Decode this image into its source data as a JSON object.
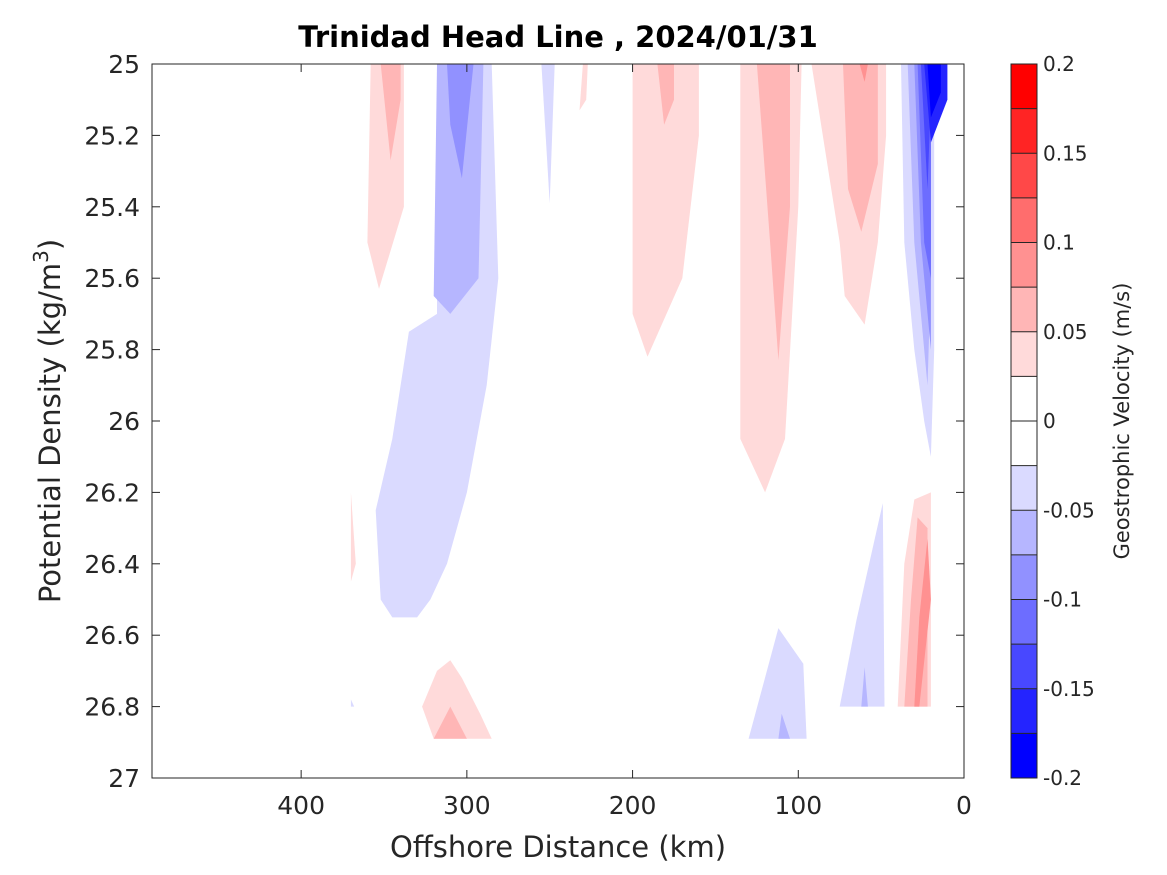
{
  "chart_data": {
    "type": "contour",
    "title": "Trinidad Head Line , 2024/01/31",
    "xlabel": "Offshore Distance (km)",
    "ylabel_main": "Potential Density (kg/m",
    "ylabel_sup": "3",
    "ylabel_close": ")",
    "xlim": [
      490,
      0
    ],
    "ylim": [
      25,
      27
    ],
    "y_reversed": true,
    "x_ticks": [
      "400",
      "300",
      "200",
      "100",
      "0"
    ],
    "x_tick_values": [
      400,
      300,
      200,
      100,
      0
    ],
    "y_ticks": [
      "25",
      "25.2",
      "25.4",
      "25.6",
      "25.8",
      "26",
      "26.2",
      "26.4",
      "26.6",
      "26.8",
      "27"
    ],
    "y_tick_values": [
      25,
      25.2,
      25.4,
      25.6,
      25.8,
      26,
      26.2,
      26.4,
      26.6,
      26.8,
      27
    ],
    "colorbar": {
      "label": "Geostrophic Velocity (m/s)",
      "clim": [
        -0.2,
        0.2
      ],
      "tick_labels": [
        "0.2",
        "0.15",
        "0.1",
        "0.05",
        "0",
        "-0.05",
        "-0.1",
        "-0.15",
        "-0.2"
      ],
      "tick_values": [
        0.2,
        0.15,
        0.1,
        0.05,
        0,
        -0.05,
        -0.1,
        -0.15,
        -0.2
      ],
      "level_colors": [
        "#0000ff",
        "#2424ff",
        "#4848ff",
        "#6d6dff",
        "#9191ff",
        "#b6b6ff",
        "#dadaff",
        "#ffffff",
        "#ffffff",
        "#ffdada",
        "#ffb6b6",
        "#ff9191",
        "#ff6d6d",
        "#ff4848",
        "#ff2424",
        "#ff0000"
      ]
    },
    "regions": [
      {
        "level": -0.04,
        "color": "#dadaff",
        "points": [
          [
            285,
            25
          ],
          [
            281,
            25.6
          ],
          [
            288,
            25.9
          ],
          [
            300,
            26.2
          ],
          [
            312,
            26.4
          ],
          [
            322,
            26.5
          ],
          [
            330,
            26.55
          ],
          [
            345,
            26.55
          ],
          [
            352,
            26.5
          ],
          [
            355,
            26.25
          ],
          [
            345,
            26.05
          ],
          [
            335,
            25.75
          ],
          [
            318,
            25.7
          ],
          [
            318,
            25
          ],
          [
            285,
            25
          ]
        ]
      },
      {
        "level": -0.06,
        "color": "#b6b6ff",
        "points": [
          [
            290,
            25
          ],
          [
            293,
            25.6
          ],
          [
            310,
            25.7
          ],
          [
            320,
            25.65
          ],
          [
            318,
            25
          ],
          [
            290,
            25
          ]
        ]
      },
      {
        "level": -0.08,
        "color": "#9191ff",
        "points": [
          [
            296,
            25
          ],
          [
            303,
            25.32
          ],
          [
            310,
            25.17
          ],
          [
            312,
            25
          ],
          [
            296,
            25
          ]
        ]
      },
      {
        "level": -0.04,
        "color": "#dadaff",
        "points": [
          [
            255,
            25
          ],
          [
            250,
            25.39
          ],
          [
            247,
            25
          ],
          [
            255,
            25
          ]
        ]
      },
      {
        "level": 0.04,
        "color": "#ffdada",
        "points": [
          [
            358,
            25
          ],
          [
            360,
            25.5
          ],
          [
            353,
            25.63
          ],
          [
            338,
            25.4
          ],
          [
            338,
            25
          ],
          [
            358,
            25
          ]
        ]
      },
      {
        "level": 0.06,
        "color": "#ffb6b6",
        "points": [
          [
            352,
            25
          ],
          [
            346,
            25.27
          ],
          [
            340,
            25.1
          ],
          [
            340,
            25
          ],
          [
            352,
            25
          ]
        ]
      },
      {
        "level": 0.04,
        "color": "#ffdada",
        "points": [
          [
            230,
            25
          ],
          [
            232,
            25.13
          ],
          [
            228,
            25.1
          ],
          [
            227,
            25
          ],
          [
            230,
            25
          ]
        ]
      },
      {
        "level": 0.04,
        "color": "#ffdada",
        "points": [
          [
            200,
            25
          ],
          [
            200,
            25.7
          ],
          [
            191,
            25.82
          ],
          [
            170,
            25.6
          ],
          [
            160,
            25.2
          ],
          [
            160,
            25
          ],
          [
            200,
            25
          ]
        ]
      },
      {
        "level": 0.06,
        "color": "#ffb6b6",
        "points": [
          [
            185,
            25
          ],
          [
            181,
            25.17
          ],
          [
            175,
            25.1
          ],
          [
            175,
            25
          ],
          [
            185,
            25
          ]
        ]
      },
      {
        "level": 0.04,
        "color": "#ffdada",
        "points": [
          [
            135,
            25
          ],
          [
            135,
            26.05
          ],
          [
            120,
            26.2
          ],
          [
            108,
            26.05
          ],
          [
            100,
            25.4
          ],
          [
            98,
            25
          ],
          [
            135,
            25
          ]
        ]
      },
      {
        "level": 0.06,
        "color": "#ffb6b6",
        "points": [
          [
            125,
            25
          ],
          [
            117,
            25.5
          ],
          [
            112,
            25.83
          ],
          [
            105,
            25.4
          ],
          [
            105,
            25
          ],
          [
            125,
            25
          ]
        ]
      },
      {
        "level": 0.04,
        "color": "#ffdada",
        "points": [
          [
            92,
            25
          ],
          [
            75,
            25.5
          ],
          [
            72,
            25.65
          ],
          [
            60,
            25.73
          ],
          [
            52,
            25.5
          ],
          [
            47,
            25.2
          ],
          [
            47,
            25
          ],
          [
            92,
            25
          ]
        ]
      },
      {
        "level": 0.06,
        "color": "#ffb6b6",
        "points": [
          [
            73,
            25
          ],
          [
            70,
            25.35
          ],
          [
            62,
            25.47
          ],
          [
            52,
            25.28
          ],
          [
            52,
            25
          ],
          [
            73,
            25
          ]
        ]
      },
      {
        "level": 0.08,
        "color": "#ff9191",
        "points": [
          [
            63,
            25
          ],
          [
            60,
            25.05
          ],
          [
            58,
            25
          ],
          [
            63,
            25
          ]
        ]
      },
      {
        "level": -0.04,
        "color": "#dadaff",
        "points": [
          [
            38,
            25
          ],
          [
            36,
            25.5
          ],
          [
            30,
            25.8
          ],
          [
            24,
            26
          ],
          [
            20,
            26.1
          ],
          [
            18,
            25.8
          ],
          [
            18,
            25.2
          ],
          [
            20,
            25
          ],
          [
            38,
            25
          ]
        ]
      },
      {
        "level": -0.06,
        "color": "#b6b6ff",
        "points": [
          [
            34,
            25
          ],
          [
            30,
            25.5
          ],
          [
            22,
            25.9
          ],
          [
            20,
            25.6
          ],
          [
            20,
            25
          ],
          [
            34,
            25
          ]
        ]
      },
      {
        "level": -0.08,
        "color": "#9191ff",
        "points": [
          [
            30,
            25
          ],
          [
            26,
            25.5
          ],
          [
            20,
            25.8
          ],
          [
            20,
            25
          ],
          [
            30,
            25
          ]
        ]
      },
      {
        "level": -0.1,
        "color": "#6d6dff",
        "points": [
          [
            28,
            25
          ],
          [
            24,
            25.5
          ],
          [
            20,
            25.6
          ],
          [
            20,
            25
          ],
          [
            28,
            25
          ]
        ]
      },
      {
        "level": -0.12,
        "color": "#4848ff",
        "points": [
          [
            26,
            25
          ],
          [
            22,
            25.35
          ],
          [
            20,
            25.1
          ],
          [
            20,
            25
          ],
          [
            26,
            25
          ]
        ]
      },
      {
        "level": -0.14,
        "color": "#2424ff",
        "points": [
          [
            24,
            25
          ],
          [
            20,
            25.22
          ],
          [
            10,
            25.1
          ],
          [
            10,
            25
          ],
          [
            24,
            25
          ]
        ]
      },
      {
        "level": -0.16,
        "color": "#0000ff",
        "points": [
          [
            22,
            25
          ],
          [
            20,
            25.15
          ],
          [
            14,
            25.08
          ],
          [
            14,
            25
          ],
          [
            22,
            25
          ]
        ]
      },
      {
        "level": 0.04,
        "color": "#ffdada",
        "points": [
          [
            370,
            26.2
          ],
          [
            367,
            26.4
          ],
          [
            370,
            26.45
          ],
          [
            370,
            26.2
          ]
        ]
      },
      {
        "level": -0.04,
        "color": "#dadaff",
        "points": [
          [
            370,
            26.78
          ],
          [
            368,
            26.8
          ],
          [
            370,
            26.8
          ],
          [
            370,
            26.78
          ]
        ]
      },
      {
        "level": 0.04,
        "color": "#ffdada",
        "points": [
          [
            327,
            26.8
          ],
          [
            320,
            26.89
          ],
          [
            285,
            26.89
          ],
          [
            292,
            26.82
          ],
          [
            303,
            26.72
          ],
          [
            310,
            26.67
          ],
          [
            318,
            26.7
          ],
          [
            327,
            26.8
          ]
        ]
      },
      {
        "level": 0.06,
        "color": "#ffb6b6",
        "points": [
          [
            320,
            26.89
          ],
          [
            310,
            26.8
          ],
          [
            300,
            26.89
          ],
          [
            320,
            26.89
          ]
        ]
      },
      {
        "level": -0.04,
        "color": "#dadaff",
        "points": [
          [
            130,
            26.89
          ],
          [
            112,
            26.58
          ],
          [
            97,
            26.68
          ],
          [
            95,
            26.89
          ],
          [
            130,
            26.89
          ]
        ]
      },
      {
        "level": -0.06,
        "color": "#b6b6ff",
        "points": [
          [
            112,
            26.89
          ],
          [
            110,
            26.82
          ],
          [
            105,
            26.89
          ],
          [
            112,
            26.89
          ]
        ]
      },
      {
        "level": -0.04,
        "color": "#dadaff",
        "points": [
          [
            75,
            26.8
          ],
          [
            65,
            26.56
          ],
          [
            49,
            26.23
          ],
          [
            48,
            26.8
          ],
          [
            75,
            26.8
          ]
        ]
      },
      {
        "level": -0.06,
        "color": "#b6b6ff",
        "points": [
          [
            62,
            26.8
          ],
          [
            60,
            26.69
          ],
          [
            58,
            26.8
          ],
          [
            62,
            26.8
          ]
        ]
      },
      {
        "level": 0.04,
        "color": "#ffdada",
        "points": [
          [
            40,
            26.8
          ],
          [
            36,
            26.4
          ],
          [
            30,
            26.22
          ],
          [
            20,
            26.2
          ],
          [
            20,
            26.8
          ],
          [
            40,
            26.8
          ]
        ]
      },
      {
        "level": 0.06,
        "color": "#ffb6b6",
        "points": [
          [
            36,
            26.8
          ],
          [
            32,
            26.5
          ],
          [
            28,
            26.27
          ],
          [
            22,
            26.3
          ],
          [
            22,
            26.8
          ],
          [
            36,
            26.8
          ]
        ]
      },
      {
        "level": 0.08,
        "color": "#ff9191",
        "points": [
          [
            30,
            26.8
          ],
          [
            27,
            26.55
          ],
          [
            22,
            26.33
          ],
          [
            20,
            26.5
          ],
          [
            27,
            26.8
          ],
          [
            30,
            26.8
          ]
        ]
      }
    ]
  }
}
